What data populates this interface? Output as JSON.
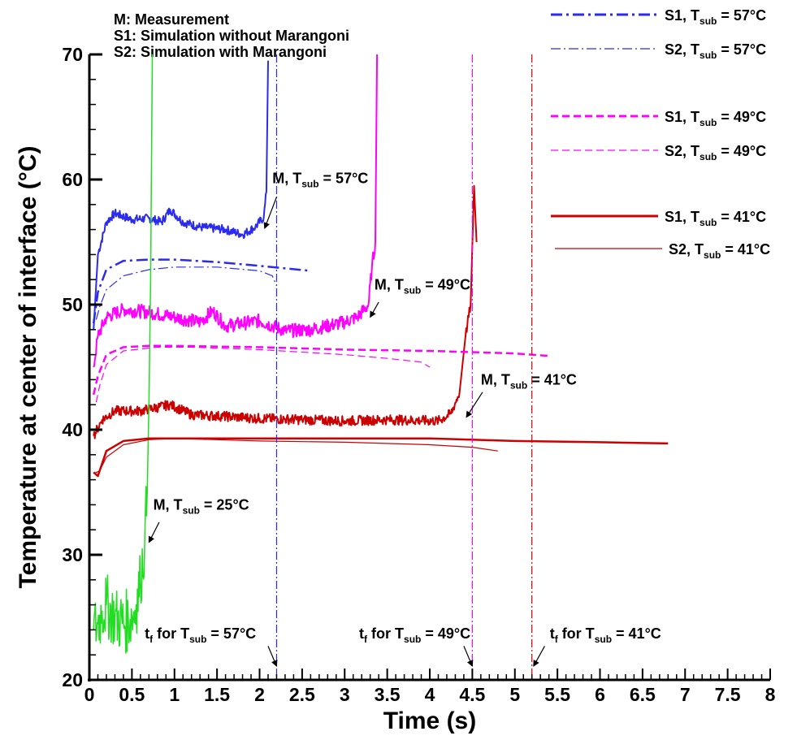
{
  "chart_data": {
    "type": "line",
    "xlabel": "Time (s)",
    "ylabel": "Temperature at center of interface (°C)",
    "xlim": [
      0,
      8
    ],
    "ylim": [
      20,
      70
    ],
    "xticks": [
      "0",
      "0.5",
      "1",
      "1.5",
      "2",
      "2.5",
      "3",
      "3.5",
      "4",
      "4.5",
      "5",
      "5.5",
      "6",
      "6.5",
      "7",
      "7.5",
      "8"
    ],
    "yticks": [
      "20",
      "30",
      "40",
      "50",
      "60",
      "70"
    ],
    "notes": [
      "M: Measurement",
      "S1: Simulation without Marangoni",
      "S2: Simulation with Marangoni"
    ],
    "legend_position": "top-right",
    "legend": [
      {
        "label": "S1, T",
        "sub": "sub",
        "rest": " = 57°C",
        "color": "#2b2bf0",
        "style": "dashdot",
        "width": 3
      },
      {
        "label": "S2, T",
        "sub": "sub",
        "rest": " = 57°C",
        "color": "#2b2bf0",
        "style": "dashdot",
        "width": 1.2
      },
      {
        "label": "S1, T",
        "sub": "sub",
        "rest": " = 49°C",
        "color": "#ff00ff",
        "style": "dashed",
        "width": 3
      },
      {
        "label": "S2, T",
        "sub": "sub",
        "rest": " = 49°C",
        "color": "#ff00ff",
        "style": "dashed",
        "width": 1.2
      },
      {
        "label": "S1, T",
        "sub": "sub",
        "rest": " = 41°C",
        "color": "#cc0000",
        "style": "solid",
        "width": 3
      },
      {
        "label": "S2, T",
        "sub": "sub",
        "rest": " = 41°C",
        "color": "#cc0000",
        "style": "solid",
        "width": 1.2
      }
    ],
    "series": [
      {
        "color": "#2b2bf0",
        "style": "solid",
        "width": 2,
        "noise": 0.35,
        "points": [
          [
            0.05,
            48
          ],
          [
            0.1,
            54
          ],
          [
            0.2,
            56.6
          ],
          [
            0.3,
            57.3
          ],
          [
            0.5,
            56.8
          ],
          [
            0.7,
            56.9
          ],
          [
            0.85,
            56.6
          ],
          [
            0.95,
            57.6
          ],
          [
            1.1,
            56.6
          ],
          [
            1.3,
            56.2
          ],
          [
            1.6,
            56.0
          ],
          [
            1.8,
            55.6
          ],
          [
            1.95,
            56.2
          ],
          [
            2.05,
            57
          ],
          [
            2.08,
            59
          ],
          [
            2.1,
            69.5
          ]
        ]
      },
      {
        "color": "#ff00ff",
        "style": "solid",
        "width": 2,
        "noise": 0.55,
        "points": [
          [
            0.05,
            45
          ],
          [
            0.1,
            47.5
          ],
          [
            0.2,
            49
          ],
          [
            0.4,
            49.6
          ],
          [
            0.7,
            49.4
          ],
          [
            1,
            49
          ],
          [
            1.3,
            48.6
          ],
          [
            1.45,
            49.5
          ],
          [
            1.6,
            48.3
          ],
          [
            2,
            48.7
          ],
          [
            2.3,
            47.9
          ],
          [
            2.6,
            48
          ],
          [
            3,
            48.6
          ],
          [
            3.15,
            49
          ],
          [
            3.28,
            50
          ],
          [
            3.32,
            53
          ],
          [
            3.36,
            55
          ],
          [
            3.38,
            70
          ]
        ]
      },
      {
        "color": "#cc0000",
        "style": "solid",
        "width": 2,
        "noise": 0.4,
        "points": [
          [
            0.05,
            39.5
          ],
          [
            0.15,
            40.8
          ],
          [
            0.3,
            41.5
          ],
          [
            0.6,
            41.5
          ],
          [
            0.95,
            42
          ],
          [
            1.2,
            41.2
          ],
          [
            1.5,
            41.1
          ],
          [
            2,
            40.9
          ],
          [
            2.5,
            40.8
          ],
          [
            3,
            40.7
          ],
          [
            3.5,
            40.8
          ],
          [
            4.1,
            40.7
          ],
          [
            4.25,
            41.3
          ],
          [
            4.35,
            43
          ],
          [
            4.42,
            47.5
          ],
          [
            4.48,
            50
          ],
          [
            4.52,
            59.5
          ],
          [
            4.55,
            55
          ]
        ]
      },
      {
        "color": "#22dd22",
        "style": "solid",
        "width": 1.5,
        "noise": 2.6,
        "points": [
          [
            0.05,
            24
          ],
          [
            0.1,
            24.5
          ],
          [
            0.15,
            25.5
          ],
          [
            0.2,
            26
          ],
          [
            0.3,
            25
          ],
          [
            0.4,
            24.5
          ],
          [
            0.5,
            25
          ],
          [
            0.55,
            26
          ],
          [
            0.6,
            28
          ],
          [
            0.65,
            31
          ],
          [
            0.68,
            35
          ],
          [
            0.7,
            42
          ],
          [
            0.72,
            52
          ],
          [
            0.74,
            70
          ]
        ]
      },
      {
        "color": "#2b2bf0",
        "style": "dashdot",
        "width": 2.5,
        "noise": 0,
        "points": [
          [
            0.05,
            48.5
          ],
          [
            0.1,
            51
          ],
          [
            0.2,
            52.8
          ],
          [
            0.4,
            53.5
          ],
          [
            0.7,
            53.6
          ],
          [
            1,
            53.6
          ],
          [
            1.5,
            53.4
          ],
          [
            2,
            53.1
          ],
          [
            2.6,
            52.7
          ]
        ]
      },
      {
        "color": "#2b2bf0",
        "style": "dashdot",
        "width": 1.2,
        "noise": 0,
        "points": [
          [
            0.08,
            48.8
          ],
          [
            0.12,
            49.8
          ],
          [
            0.2,
            51.2
          ],
          [
            0.4,
            52.3
          ],
          [
            0.7,
            52.8
          ],
          [
            1,
            53
          ],
          [
            1.5,
            53
          ],
          [
            2,
            52.7
          ],
          [
            2.15,
            52.3
          ],
          [
            2.2,
            51.5
          ]
        ]
      },
      {
        "color": "#ff00ff",
        "style": "dashed",
        "width": 2.5,
        "noise": 0,
        "points": [
          [
            0.05,
            42.8
          ],
          [
            0.1,
            44.3
          ],
          [
            0.2,
            46
          ],
          [
            0.4,
            46.6
          ],
          [
            0.7,
            46.7
          ],
          [
            1,
            46.7
          ],
          [
            2,
            46.6
          ],
          [
            3,
            46.4
          ],
          [
            4,
            46.3
          ],
          [
            5,
            46.1
          ],
          [
            5.4,
            45.9
          ]
        ]
      },
      {
        "color": "#ff00ff",
        "style": "dashed",
        "width": 1.2,
        "noise": 0,
        "points": [
          [
            0.08,
            42.2
          ],
          [
            0.12,
            43.5
          ],
          [
            0.2,
            45.2
          ],
          [
            0.4,
            46.3
          ],
          [
            0.8,
            46.6
          ],
          [
            1.2,
            46.6
          ],
          [
            2,
            46.4
          ],
          [
            3,
            46
          ],
          [
            3.5,
            45.7
          ],
          [
            3.9,
            45.4
          ],
          [
            4.0,
            45.0
          ]
        ]
      },
      {
        "color": "#cc0000",
        "style": "solid",
        "width": 2.5,
        "noise": 0,
        "points": [
          [
            0.05,
            36.6
          ],
          [
            0.1,
            36.3
          ],
          [
            0.2,
            38.3
          ],
          [
            0.4,
            39.1
          ],
          [
            0.7,
            39.3
          ],
          [
            1,
            39.3
          ],
          [
            2,
            39.3
          ],
          [
            3,
            39.3
          ],
          [
            4,
            39.3
          ],
          [
            5,
            39.1
          ],
          [
            6,
            39
          ],
          [
            6.8,
            38.9
          ]
        ]
      },
      {
        "color": "#cc0000",
        "style": "solid",
        "width": 1.2,
        "noise": 0,
        "points": [
          [
            0.05,
            36.5
          ],
          [
            0.12,
            36.7
          ],
          [
            0.2,
            37.8
          ],
          [
            0.4,
            38.8
          ],
          [
            0.7,
            39.2
          ],
          [
            1,
            39.3
          ],
          [
            2,
            39.1
          ],
          [
            3,
            39
          ],
          [
            4,
            38.8
          ],
          [
            4.5,
            38.6
          ],
          [
            4.8,
            38.3
          ]
        ]
      }
    ],
    "vlines": [
      {
        "x": 2.2,
        "color": "#2b2bf0"
      },
      {
        "x": 4.5,
        "color": "#ff00ff"
      },
      {
        "x": 5.2,
        "color": "#cc0000"
      }
    ],
    "annotations": [
      {
        "pre": "M, T",
        "sub": "sub",
        "post": " = 57°C",
        "x": 2.15,
        "y": 59.7,
        "ax": 2.2,
        "ay": 58.6,
        "tx": 2.06,
        "ty": 56.1
      },
      {
        "pre": "M, T",
        "sub": "sub",
        "post": " = 49°C",
        "x": 3.35,
        "y": 51.2,
        "ax": 3.4,
        "ay": 50.2,
        "tx": 3.3,
        "ty": 49
      },
      {
        "pre": "M, T",
        "sub": "sub",
        "post": " = 41°C",
        "x": 4.6,
        "y": 43.6,
        "ax": 4.62,
        "ay": 43,
        "tx": 4.43,
        "ty": 41
      },
      {
        "pre": "M, T",
        "sub": "sub",
        "post": " = 25°C",
        "x": 0.75,
        "y": 33.6,
        "ax": 0.82,
        "ay": 32.6,
        "tx": 0.7,
        "ty": 31
      },
      {
        "pre": "t",
        "sub": "f",
        "post": " for T",
        "sub2": "sub",
        "post2": " = 57°C",
        "x": 0.65,
        "y": 23.3,
        "ax": 2.1,
        "ay": 22.7,
        "tx": 2.2,
        "ty": 21.1
      },
      {
        "pre": "t",
        "sub": "f",
        "post": " for T",
        "sub2": "sub",
        "post2": " = 49°C",
        "x": 3.17,
        "y": 23.3,
        "ax": 4.4,
        "ay": 22.7,
        "tx": 4.5,
        "ty": 21.1
      },
      {
        "pre": "t",
        "sub": "f",
        "post": " for T",
        "sub2": "sub",
        "post2": " = 41°C",
        "x": 5.41,
        "y": 23.3,
        "ax": 5.35,
        "ay": 22.7,
        "tx": 5.22,
        "ty": 21.1
      }
    ]
  }
}
